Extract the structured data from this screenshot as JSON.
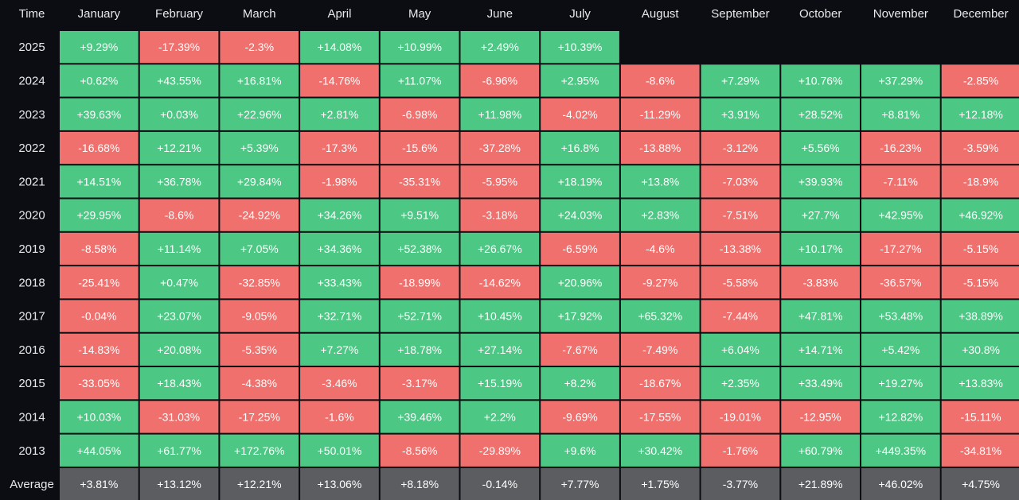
{
  "chart_data": {
    "type": "heatmap",
    "corner_label": "Time",
    "columns": [
      "January",
      "February",
      "March",
      "April",
      "May",
      "June",
      "July",
      "August",
      "September",
      "October",
      "November",
      "December"
    ],
    "rows": [
      {
        "label": "2025",
        "values": [
          "+9.29%",
          "-17.39%",
          "-2.3%",
          "+14.08%",
          "+10.99%",
          "+2.49%",
          "+10.39%",
          null,
          null,
          null,
          null,
          null
        ]
      },
      {
        "label": "2024",
        "values": [
          "+0.62%",
          "+43.55%",
          "+16.81%",
          "-14.76%",
          "+11.07%",
          "-6.96%",
          "+2.95%",
          "-8.6%",
          "+7.29%",
          "+10.76%",
          "+37.29%",
          "-2.85%"
        ]
      },
      {
        "label": "2023",
        "values": [
          "+39.63%",
          "+0.03%",
          "+22.96%",
          "+2.81%",
          "-6.98%",
          "+11.98%",
          "-4.02%",
          "-11.29%",
          "+3.91%",
          "+28.52%",
          "+8.81%",
          "+12.18%"
        ]
      },
      {
        "label": "2022",
        "values": [
          "-16.68%",
          "+12.21%",
          "+5.39%",
          "-17.3%",
          "-15.6%",
          "-37.28%",
          "+16.8%",
          "-13.88%",
          "-3.12%",
          "+5.56%",
          "-16.23%",
          "-3.59%"
        ]
      },
      {
        "label": "2021",
        "values": [
          "+14.51%",
          "+36.78%",
          "+29.84%",
          "-1.98%",
          "-35.31%",
          "-5.95%",
          "+18.19%",
          "+13.8%",
          "-7.03%",
          "+39.93%",
          "-7.11%",
          "-18.9%"
        ]
      },
      {
        "label": "2020",
        "values": [
          "+29.95%",
          "-8.6%",
          "-24.92%",
          "+34.26%",
          "+9.51%",
          "-3.18%",
          "+24.03%",
          "+2.83%",
          "-7.51%",
          "+27.7%",
          "+42.95%",
          "+46.92%"
        ]
      },
      {
        "label": "2019",
        "values": [
          "-8.58%",
          "+11.14%",
          "+7.05%",
          "+34.36%",
          "+52.38%",
          "+26.67%",
          "-6.59%",
          "-4.6%",
          "-13.38%",
          "+10.17%",
          "-17.27%",
          "-5.15%"
        ]
      },
      {
        "label": "2018",
        "values": [
          "-25.41%",
          "+0.47%",
          "-32.85%",
          "+33.43%",
          "-18.99%",
          "-14.62%",
          "+20.96%",
          "-9.27%",
          "-5.58%",
          "-3.83%",
          "-36.57%",
          "-5.15%"
        ]
      },
      {
        "label": "2017",
        "values": [
          "-0.04%",
          "+23.07%",
          "-9.05%",
          "+32.71%",
          "+52.71%",
          "+10.45%",
          "+17.92%",
          "+65.32%",
          "-7.44%",
          "+47.81%",
          "+53.48%",
          "+38.89%"
        ]
      },
      {
        "label": "2016",
        "values": [
          "-14.83%",
          "+20.08%",
          "-5.35%",
          "+7.27%",
          "+18.78%",
          "+27.14%",
          "-7.67%",
          "-7.49%",
          "+6.04%",
          "+14.71%",
          "+5.42%",
          "+30.8%"
        ]
      },
      {
        "label": "2015",
        "values": [
          "-33.05%",
          "+18.43%",
          "-4.38%",
          "-3.46%",
          "-3.17%",
          "+15.19%",
          "+8.2%",
          "-18.67%",
          "+2.35%",
          "+33.49%",
          "+19.27%",
          "+13.83%"
        ]
      },
      {
        "label": "2014",
        "values": [
          "+10.03%",
          "-31.03%",
          "-17.25%",
          "-1.6%",
          "+39.46%",
          "+2.2%",
          "-9.69%",
          "-17.55%",
          "-19.01%",
          "-12.95%",
          "+12.82%",
          "-15.11%"
        ]
      },
      {
        "label": "2013",
        "values": [
          "+44.05%",
          "+61.77%",
          "+172.76%",
          "+50.01%",
          "-8.56%",
          "-29.89%",
          "+9.6%",
          "+30.42%",
          "-1.76%",
          "+60.79%",
          "+449.35%",
          "-34.81%"
        ]
      }
    ],
    "average": {
      "label": "Average",
      "values": [
        "+3.81%",
        "+13.12%",
        "+12.21%",
        "+13.06%",
        "+8.18%",
        "-0.14%",
        "+7.77%",
        "+1.75%",
        "-3.77%",
        "+21.89%",
        "+46.02%",
        "+4.75%"
      ]
    },
    "colors": {
      "positive": "#4cc784",
      "negative": "#f0706e",
      "average": "#5c5d61",
      "background": "#0b0d12",
      "text": "#ffffff"
    }
  }
}
